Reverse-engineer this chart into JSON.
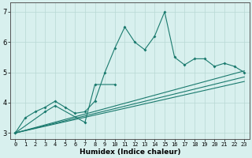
{
  "xlabel": "Humidex (Indice chaleur)",
  "x": [
    0,
    1,
    2,
    3,
    4,
    5,
    6,
    7,
    8,
    9,
    10,
    11,
    12,
    13,
    14,
    15,
    16,
    17,
    18,
    19,
    20,
    21,
    22,
    23
  ],
  "line1": [
    3.0,
    3.5,
    3.7,
    3.85,
    4.05,
    3.85,
    3.65,
    3.7,
    4.05,
    5.0,
    5.8,
    6.5,
    6.0,
    5.75,
    6.2,
    7.0,
    5.5,
    5.25,
    5.45,
    5.45,
    5.2,
    5.3,
    5.2,
    5.0
  ],
  "line2_x": [
    0,
    3,
    4,
    7,
    8,
    10
  ],
  "line2_y": [
    3.0,
    3.7,
    3.9,
    3.35,
    4.6,
    4.6
  ],
  "reg1": [
    3.0,
    5.05
  ],
  "reg2": [
    3.0,
    4.85
  ],
  "reg3": [
    3.0,
    4.7
  ],
  "color": "#1a7a6e",
  "bg_color": "#d8f0ee",
  "grid_color": "#b8d8d4",
  "ylim": [
    2.8,
    7.3
  ],
  "xlim": [
    -0.5,
    23.5
  ],
  "yticks": [
    3,
    4,
    5,
    6,
    7
  ],
  "xticks": [
    0,
    1,
    2,
    3,
    4,
    5,
    6,
    7,
    8,
    9,
    10,
    11,
    12,
    13,
    14,
    15,
    16,
    17,
    18,
    19,
    20,
    21,
    22,
    23
  ]
}
